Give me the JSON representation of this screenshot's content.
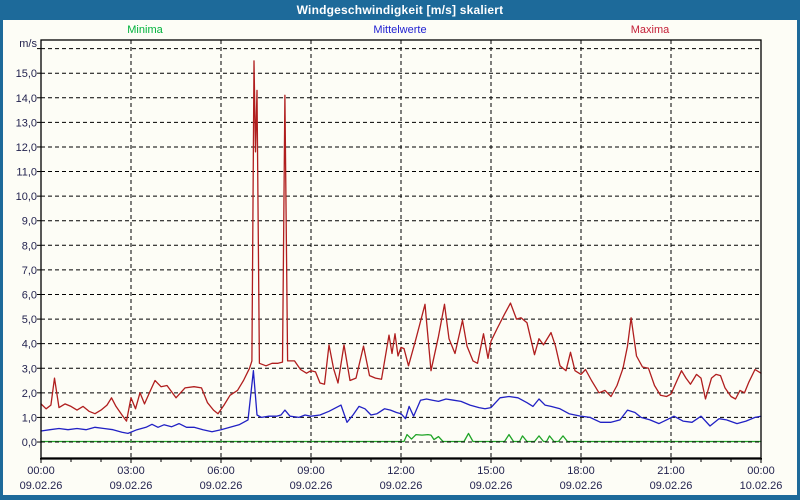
{
  "window": {
    "title": "Windgeschwindigkeit [m/s] skaliert"
  },
  "colors": {
    "frame": "#1d6a9a",
    "axis_text": "#23234f",
    "grid": "#000000",
    "background": "#fdfdf6"
  },
  "legend": {
    "minima_label": "Minima",
    "mittelwerte_label": "Mittelwerte",
    "maxima_label": "Maxima"
  },
  "chart_data": {
    "type": "line",
    "title": "Windgeschwindigkeit [m/s] skaliert",
    "xlabel": "",
    "ylabel": "m/s",
    "y_axis_unit_label": "m/s",
    "xlim_hours": [
      0,
      24
    ],
    "ylim": [
      -0.65,
      16.35
    ],
    "grid": "dashed",
    "legend_position": "top",
    "y_tick_labels": [
      "0,0",
      "1,0",
      "2,0",
      "3,0",
      "4,0",
      "5,0",
      "6,0",
      "7,0",
      "8,0",
      "9,0",
      "10,0",
      "11,0",
      "12,0",
      "13,0",
      "14,0",
      "15,0"
    ],
    "x_ticks": [
      {
        "t": 0,
        "time": "00:00",
        "date": "09.02.26"
      },
      {
        "t": 3,
        "time": "03:00",
        "date": "09.02.26"
      },
      {
        "t": 6,
        "time": "06:00",
        "date": "09.02.26"
      },
      {
        "t": 9,
        "time": "09:00",
        "date": "09.02.26"
      },
      {
        "t": 12,
        "time": "12:00",
        "date": "09.02.26"
      },
      {
        "t": 15,
        "time": "15:00",
        "date": "09.02.26"
      },
      {
        "t": 18,
        "time": "18:00",
        "date": "09.02.26"
      },
      {
        "t": 21,
        "time": "21:00",
        "date": "09.02.26"
      },
      {
        "t": 24,
        "time": "00:00",
        "date": "10.02.26"
      }
    ],
    "series": [
      {
        "name": "Minima",
        "color": "#1fa426",
        "label_color": "#00b23c",
        "points": [
          [
            0,
            0.02
          ],
          [
            12.1,
            0.02
          ],
          [
            12.2,
            0.3
          ],
          [
            12.35,
            0.12
          ],
          [
            12.5,
            0.3
          ],
          [
            12.7,
            0.28
          ],
          [
            12.9,
            0.3
          ],
          [
            13.0,
            0.28
          ],
          [
            13.1,
            0.1
          ],
          [
            13.25,
            0.22
          ],
          [
            13.4,
            0.02
          ],
          [
            14.1,
            0.02
          ],
          [
            14.25,
            0.35
          ],
          [
            14.4,
            0.02
          ],
          [
            15.45,
            0.02
          ],
          [
            15.6,
            0.3
          ],
          [
            15.75,
            0.02
          ],
          [
            15.95,
            0.02
          ],
          [
            16.05,
            0.25
          ],
          [
            16.2,
            0.02
          ],
          [
            16.45,
            0.02
          ],
          [
            16.6,
            0.25
          ],
          [
            16.75,
            0.02
          ],
          [
            16.85,
            0.02
          ],
          [
            16.95,
            0.25
          ],
          [
            17.1,
            0.02
          ],
          [
            17.25,
            0.02
          ],
          [
            17.4,
            0.25
          ],
          [
            17.55,
            0.02
          ],
          [
            24,
            0.02
          ]
        ]
      },
      {
        "name": "Mittelwerte",
        "color": "#2121c4",
        "label_color": "#2222d2",
        "points": [
          [
            0,
            0.45
          ],
          [
            0.3,
            0.5
          ],
          [
            0.6,
            0.55
          ],
          [
            0.9,
            0.5
          ],
          [
            1.2,
            0.55
          ],
          [
            1.5,
            0.5
          ],
          [
            1.8,
            0.6
          ],
          [
            2.1,
            0.55
          ],
          [
            2.4,
            0.5
          ],
          [
            2.7,
            0.4
          ],
          [
            2.9,
            0.35
          ],
          [
            3.2,
            0.5
          ],
          [
            3.5,
            0.6
          ],
          [
            3.7,
            0.72
          ],
          [
            3.9,
            0.6
          ],
          [
            4.1,
            0.7
          ],
          [
            4.35,
            0.62
          ],
          [
            4.6,
            0.75
          ],
          [
            4.85,
            0.6
          ],
          [
            5.1,
            0.6
          ],
          [
            5.4,
            0.5
          ],
          [
            5.7,
            0.42
          ],
          [
            6.0,
            0.5
          ],
          [
            6.3,
            0.6
          ],
          [
            6.6,
            0.7
          ],
          [
            6.9,
            0.9
          ],
          [
            7.08,
            2.9
          ],
          [
            7.2,
            1.1
          ],
          [
            7.35,
            1.0
          ],
          [
            7.6,
            1.05
          ],
          [
            7.85,
            1.05
          ],
          [
            8.0,
            1.1
          ],
          [
            8.13,
            1.3
          ],
          [
            8.3,
            1.05
          ],
          [
            8.6,
            1.0
          ],
          [
            8.8,
            1.1
          ],
          [
            9.0,
            1.05
          ],
          [
            9.3,
            1.1
          ],
          [
            9.6,
            1.25
          ],
          [
            10.0,
            1.5
          ],
          [
            10.2,
            0.8
          ],
          [
            10.4,
            1.1
          ],
          [
            10.6,
            1.45
          ],
          [
            10.8,
            1.35
          ],
          [
            11.0,
            1.1
          ],
          [
            11.2,
            1.15
          ],
          [
            11.45,
            1.35
          ],
          [
            11.65,
            1.3
          ],
          [
            11.85,
            1.2
          ],
          [
            12.0,
            1.15
          ],
          [
            12.15,
            0.95
          ],
          [
            12.27,
            1.45
          ],
          [
            12.42,
            1.05
          ],
          [
            12.65,
            1.7
          ],
          [
            12.85,
            1.75
          ],
          [
            13.05,
            1.7
          ],
          [
            13.25,
            1.65
          ],
          [
            13.5,
            1.75
          ],
          [
            13.75,
            1.7
          ],
          [
            14.0,
            1.65
          ],
          [
            14.3,
            1.5
          ],
          [
            14.6,
            1.4
          ],
          [
            14.8,
            1.35
          ],
          [
            15.0,
            1.4
          ],
          [
            15.3,
            1.8
          ],
          [
            15.6,
            1.85
          ],
          [
            15.9,
            1.8
          ],
          [
            16.2,
            1.6
          ],
          [
            16.4,
            1.45
          ],
          [
            16.6,
            1.75
          ],
          [
            16.8,
            1.5
          ],
          [
            17.0,
            1.45
          ],
          [
            17.3,
            1.35
          ],
          [
            17.6,
            1.15
          ],
          [
            18.0,
            1.05
          ],
          [
            18.3,
            1.0
          ],
          [
            18.65,
            0.8
          ],
          [
            19.0,
            0.8
          ],
          [
            19.3,
            0.9
          ],
          [
            19.55,
            1.3
          ],
          [
            19.8,
            1.2
          ],
          [
            20.0,
            1.0
          ],
          [
            20.3,
            0.9
          ],
          [
            20.6,
            0.75
          ],
          [
            20.85,
            0.9
          ],
          [
            21.1,
            1.05
          ],
          [
            21.4,
            0.85
          ],
          [
            21.7,
            0.8
          ],
          [
            22.0,
            1.05
          ],
          [
            22.3,
            0.65
          ],
          [
            22.6,
            0.95
          ],
          [
            22.85,
            0.9
          ],
          [
            23.2,
            0.75
          ],
          [
            23.5,
            0.85
          ],
          [
            23.8,
            1.0
          ],
          [
            24,
            1.05
          ]
        ]
      },
      {
        "name": "Maxima",
        "color": "#b01e1e",
        "label_color": "#c42038",
        "points": [
          [
            0,
            1.55
          ],
          [
            0.17,
            1.35
          ],
          [
            0.33,
            1.5
          ],
          [
            0.45,
            2.6
          ],
          [
            0.6,
            1.4
          ],
          [
            0.8,
            1.55
          ],
          [
            1.0,
            1.45
          ],
          [
            1.2,
            1.3
          ],
          [
            1.4,
            1.45
          ],
          [
            1.6,
            1.25
          ],
          [
            1.8,
            1.15
          ],
          [
            2.0,
            1.3
          ],
          [
            2.2,
            1.5
          ],
          [
            2.35,
            1.8
          ],
          [
            2.5,
            1.45
          ],
          [
            2.7,
            1.1
          ],
          [
            2.85,
            0.85
          ],
          [
            3.0,
            1.8
          ],
          [
            3.15,
            1.35
          ],
          [
            3.3,
            2.0
          ],
          [
            3.45,
            1.55
          ],
          [
            3.65,
            2.1
          ],
          [
            3.8,
            2.5
          ],
          [
            4.0,
            2.25
          ],
          [
            4.2,
            2.3
          ],
          [
            4.5,
            1.8
          ],
          [
            4.8,
            2.2
          ],
          [
            5.1,
            2.25
          ],
          [
            5.35,
            2.2
          ],
          [
            5.55,
            1.6
          ],
          [
            5.75,
            1.3
          ],
          [
            5.9,
            1.15
          ],
          [
            6.1,
            1.5
          ],
          [
            6.3,
            1.9
          ],
          [
            6.55,
            2.1
          ],
          [
            6.75,
            2.5
          ],
          [
            6.95,
            3.0
          ],
          [
            7.03,
            3.3
          ],
          [
            7.1,
            15.5
          ],
          [
            7.15,
            11.8
          ],
          [
            7.2,
            14.3
          ],
          [
            7.28,
            3.2
          ],
          [
            7.5,
            3.1
          ],
          [
            7.7,
            3.2
          ],
          [
            7.9,
            3.2
          ],
          [
            8.05,
            3.25
          ],
          [
            8.13,
            14.1
          ],
          [
            8.22,
            3.3
          ],
          [
            8.45,
            3.3
          ],
          [
            8.65,
            2.95
          ],
          [
            8.85,
            2.8
          ],
          [
            9.0,
            2.9
          ],
          [
            9.15,
            2.85
          ],
          [
            9.3,
            2.4
          ],
          [
            9.45,
            2.35
          ],
          [
            9.6,
            3.95
          ],
          [
            9.75,
            3.0
          ],
          [
            9.9,
            2.4
          ],
          [
            10.1,
            3.95
          ],
          [
            10.3,
            2.5
          ],
          [
            10.5,
            2.6
          ],
          [
            10.75,
            3.9
          ],
          [
            10.95,
            2.7
          ],
          [
            11.15,
            2.6
          ],
          [
            11.35,
            2.55
          ],
          [
            11.6,
            4.35
          ],
          [
            11.7,
            3.6
          ],
          [
            11.8,
            4.4
          ],
          [
            11.9,
            3.5
          ],
          [
            12.0,
            3.85
          ],
          [
            12.1,
            3.8
          ],
          [
            12.25,
            3.1
          ],
          [
            12.5,
            4.2
          ],
          [
            12.8,
            5.6
          ],
          [
            13.0,
            2.9
          ],
          [
            13.25,
            4.3
          ],
          [
            13.45,
            5.6
          ],
          [
            13.6,
            4.2
          ],
          [
            13.8,
            3.6
          ],
          [
            14.05,
            4.95
          ],
          [
            14.2,
            3.9
          ],
          [
            14.4,
            3.3
          ],
          [
            14.55,
            3.2
          ],
          [
            14.75,
            4.4
          ],
          [
            14.9,
            3.4
          ],
          [
            15.0,
            4.1
          ],
          [
            15.2,
            4.6
          ],
          [
            15.45,
            5.2
          ],
          [
            15.65,
            5.65
          ],
          [
            15.85,
            5.0
          ],
          [
            16.0,
            5.05
          ],
          [
            16.2,
            4.85
          ],
          [
            16.45,
            3.55
          ],
          [
            16.6,
            4.2
          ],
          [
            16.75,
            3.95
          ],
          [
            17.0,
            4.45
          ],
          [
            17.15,
            3.9
          ],
          [
            17.3,
            3.1
          ],
          [
            17.5,
            2.9
          ],
          [
            17.65,
            3.65
          ],
          [
            17.8,
            2.9
          ],
          [
            18.0,
            2.75
          ],
          [
            18.15,
            2.95
          ],
          [
            18.35,
            2.5
          ],
          [
            18.6,
            2.0
          ],
          [
            18.8,
            2.1
          ],
          [
            19.0,
            1.85
          ],
          [
            19.2,
            2.3
          ],
          [
            19.4,
            3.0
          ],
          [
            19.55,
            3.9
          ],
          [
            19.67,
            5.05
          ],
          [
            19.85,
            3.5
          ],
          [
            20.05,
            3.05
          ],
          [
            20.25,
            3.0
          ],
          [
            20.45,
            2.3
          ],
          [
            20.65,
            1.9
          ],
          [
            20.85,
            1.85
          ],
          [
            21.0,
            1.95
          ],
          [
            21.2,
            2.5
          ],
          [
            21.35,
            2.9
          ],
          [
            21.5,
            2.6
          ],
          [
            21.65,
            2.35
          ],
          [
            21.85,
            2.75
          ],
          [
            22.0,
            2.6
          ],
          [
            22.15,
            1.75
          ],
          [
            22.35,
            2.6
          ],
          [
            22.5,
            2.75
          ],
          [
            22.65,
            2.7
          ],
          [
            22.8,
            2.2
          ],
          [
            23.0,
            1.85
          ],
          [
            23.15,
            1.75
          ],
          [
            23.3,
            2.1
          ],
          [
            23.45,
            2.0
          ],
          [
            23.6,
            2.45
          ],
          [
            23.8,
            2.95
          ],
          [
            24,
            2.8
          ]
        ]
      }
    ]
  }
}
